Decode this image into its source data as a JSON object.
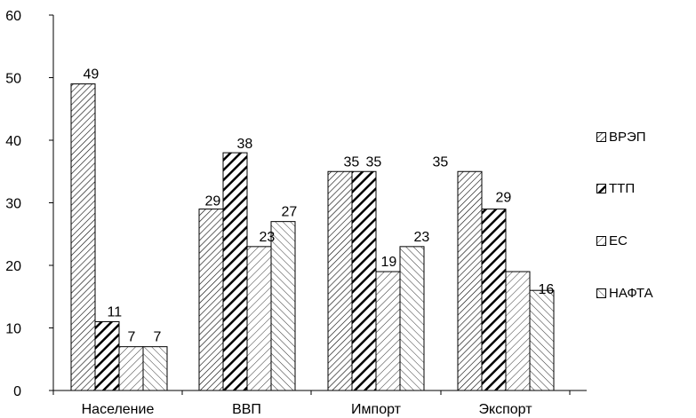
{
  "chart_data": {
    "type": "bar",
    "categories": [
      "Население",
      "ВВП",
      "Импорт",
      "Экспорт"
    ],
    "series": [
      {
        "name": "ВРЭП",
        "values": [
          49,
          29,
          35,
          35
        ],
        "pattern": "hatch-right-dense",
        "color": "#000000"
      },
      {
        "name": "ТТП",
        "values": [
          11,
          38,
          35,
          29
        ],
        "pattern": "hatch-right-bold",
        "color": "#000000"
      },
      {
        "name": "ЕС",
        "values": [
          7,
          23,
          19,
          19
        ],
        "pattern": "hatch-right-light",
        "color": "#000000"
      },
      {
        "name": "НАФТА",
        "values": [
          7,
          27,
          23,
          16
        ],
        "pattern": "hatch-left-light",
        "color": "#000000"
      }
    ],
    "data_labels": [
      [
        "49",
        "29",
        "35",
        "35"
      ],
      [
        "11",
        "38",
        "35",
        "29"
      ],
      [
        "7",
        "23",
        "19",
        ""
      ],
      [
        "7",
        "27",
        "23",
        "16"
      ]
    ],
    "yticks": [
      "0",
      "10",
      "20",
      "30",
      "40",
      "50",
      "60"
    ],
    "ylim": [
      0,
      60
    ],
    "title": "",
    "xlabel": "",
    "ylabel": "",
    "grid": false,
    "legend": "right"
  }
}
